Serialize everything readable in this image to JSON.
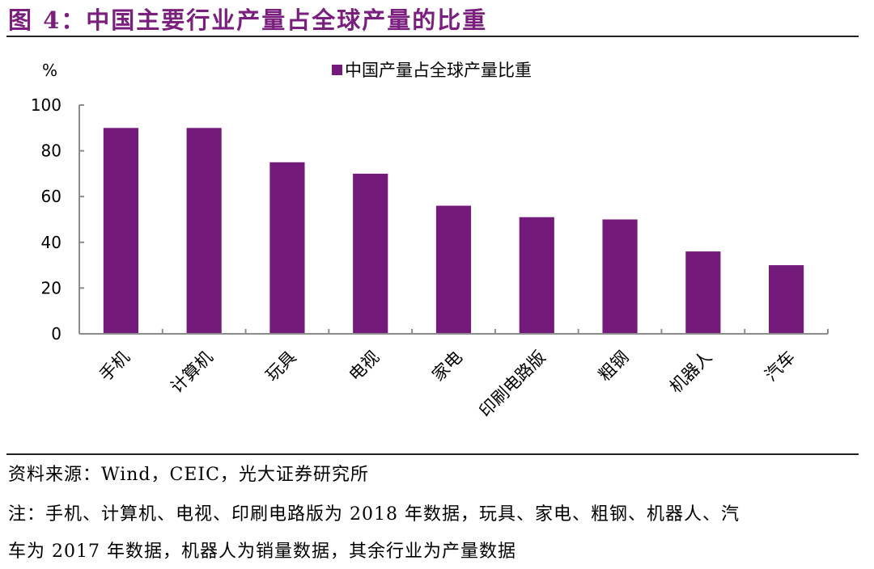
{
  "figure": {
    "title": "图 4：中国主要行业产量占全球产量的比重",
    "title_color": "#7B1F7F"
  },
  "footer": {
    "source": "资料来源：Wind，CEIC，光大证券研究所",
    "note_line1": "注：手机、计算机、电视、印刷电路版为 2018 年数据，玩具、家电、粗钢、机器人、汽",
    "note_line2": "车为 2017 年数据，机器人为销量数据，其余行业为产量数据"
  },
  "chart_data": {
    "type": "bar",
    "title": "",
    "unit_label": "%",
    "xlabel": "",
    "ylabel": "%",
    "categories": [
      "手机",
      "计算机",
      "玩具",
      "电视",
      "家电",
      "印刷电路版",
      "粗钢",
      "机器人",
      "汽车"
    ],
    "series": [
      {
        "name": "中国产量占全球产量比重",
        "color": "#731A7A",
        "values": [
          90,
          90,
          75,
          70,
          56,
          51,
          50,
          36,
          30
        ]
      }
    ],
    "ylim": [
      0,
      100
    ],
    "yticks": [
      0,
      20,
      40,
      60,
      80,
      100
    ],
    "grid": false,
    "legend_position": "top-center"
  }
}
